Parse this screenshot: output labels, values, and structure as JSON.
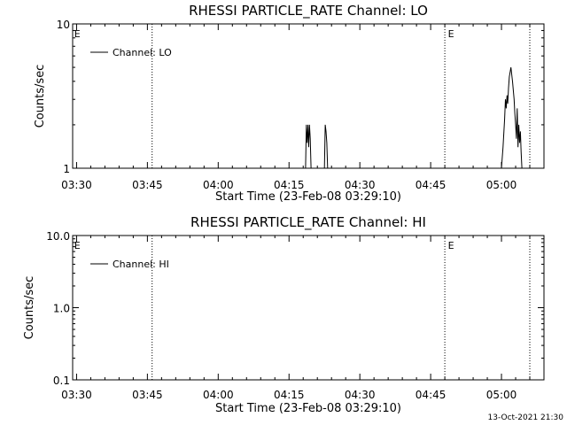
{
  "chart_data": [
    {
      "type": "line",
      "title": "RHESSI PARTICLE_RATE Channel: LO",
      "xlabel": "Start Time (23-Feb-08 03:29:10)",
      "ylabel": "Counts/sec",
      "yscale": "log",
      "ylim": [
        1,
        10
      ],
      "yticks": [
        "1",
        "10"
      ],
      "xlim": [
        "03:29:10",
        "05:09:00"
      ],
      "xticks": [
        "03:30",
        "03:45",
        "04:00",
        "04:15",
        "04:30",
        "04:45",
        "05:00"
      ],
      "grid": false,
      "legend": "top-left",
      "vertical_lines": [
        "03:46:00",
        "04:48:00",
        "05:06:00"
      ],
      "markers": [
        {
          "text": "E",
          "time": "03:29:30"
        },
        {
          "text": "E",
          "time": "04:48:40"
        }
      ],
      "series": [
        {
          "name": "Channel: LO",
          "x": [
            "04:18:30",
            "04:18:40",
            "04:18:50",
            "04:19:00",
            "04:19:10",
            "04:19:20",
            "04:19:30",
            "04:19:40",
            "04:22:30",
            "04:22:40",
            "04:22:50",
            "04:23:00",
            "04:23:10",
            "05:00:00",
            "05:00:20",
            "05:00:40",
            "05:00:50",
            "05:01:00",
            "05:01:10",
            "05:01:20",
            "05:01:30",
            "05:01:40",
            "05:02:00",
            "05:02:20",
            "05:02:40",
            "05:02:50",
            "05:03:00",
            "05:03:10",
            "05:03:20",
            "05:03:30",
            "05:03:40",
            "05:03:50",
            "05:04:00",
            "05:04:10",
            "05:04:20",
            "05:04:40"
          ],
          "values": [
            1,
            2,
            1.5,
            2,
            1.4,
            2,
            1.6,
            1,
            1,
            2,
            1.8,
            1.5,
            1,
            1,
            1.4,
            2.2,
            3,
            2.6,
            3.2,
            2.8,
            3.6,
            4.3,
            5,
            4,
            3,
            2.4,
            2,
            1.6,
            2.6,
            1.4,
            2,
            1.5,
            1.8,
            1.3,
            1,
            1
          ]
        }
      ]
    },
    {
      "type": "line",
      "title": "RHESSI PARTICLE_RATE Channel: HI",
      "xlabel": "Start Time (23-Feb-08 03:29:10)",
      "ylabel": "Counts/sec",
      "yscale": "log",
      "ylim": [
        0.1,
        10
      ],
      "yticks": [
        "0.1",
        "1.0",
        "10.0"
      ],
      "xlim": [
        "03:29:10",
        "05:09:00"
      ],
      "xticks": [
        "03:30",
        "03:45",
        "04:00",
        "04:15",
        "04:30",
        "04:45",
        "05:00"
      ],
      "grid": false,
      "legend": "top-left",
      "vertical_lines": [
        "03:46:00",
        "04:48:00",
        "05:06:00"
      ],
      "markers": [
        {
          "text": "E",
          "time": "03:29:30"
        },
        {
          "text": "E",
          "time": "04:48:40"
        }
      ],
      "series": [
        {
          "name": "Channel: HI",
          "x": [],
          "values": []
        }
      ]
    }
  ],
  "footer": {
    "timestamp": "13-Oct-2021 21:30"
  }
}
